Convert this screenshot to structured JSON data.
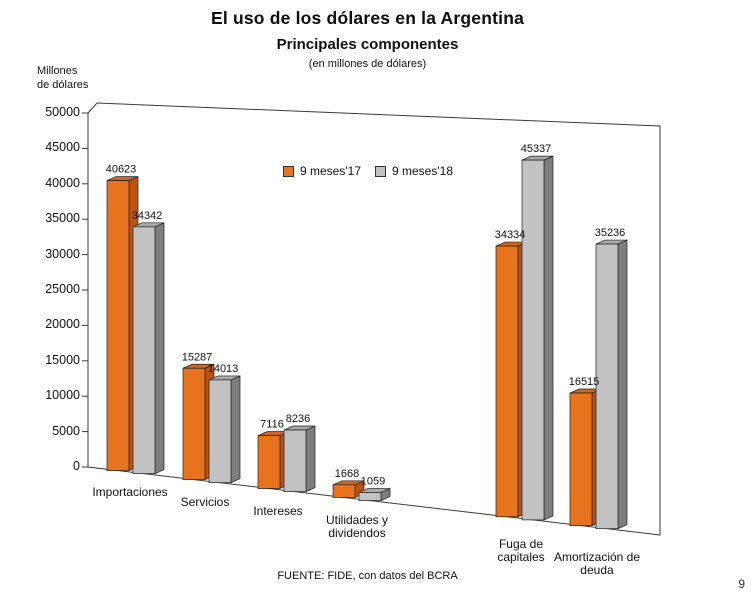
{
  "page_artifact": "9",
  "chart_data": {
    "type": "bar",
    "projection": "3d",
    "title": "El uso de los dólares en la Argentina",
    "subtitle": "Principales componentes",
    "units_note": "(en millones de dólares)",
    "y_axis_title": "Millones\nde dólares",
    "categories": [
      "Importaciones",
      "Servicios",
      "Intereses",
      "Utilidades y\ndividendos",
      "Fuga de\ncapitales",
      "Amortización de\ndeuda"
    ],
    "series": [
      {
        "name": "9 meses'17",
        "color": "#E8731E",
        "side_color": "#BC5310",
        "top_color": "#D2661A",
        "values": [
          40623,
          15287,
          7116,
          1668,
          34334,
          16515
        ]
      },
      {
        "name": "9 meses'18",
        "color": "#C2C2C2",
        "side_color": "#7E7E7E",
        "top_color": "#A9A9A9",
        "values": [
          34342,
          14013,
          8236,
          1059,
          45337,
          35236
        ]
      }
    ],
    "y_axis": {
      "min": 0,
      "max": 50000,
      "step": 5000
    },
    "ylim": [
      0,
      50000
    ],
    "grid": false,
    "legend_position": "top-center-inside",
    "source": "FUENTE: FIDE, con datos del BCRA"
  }
}
